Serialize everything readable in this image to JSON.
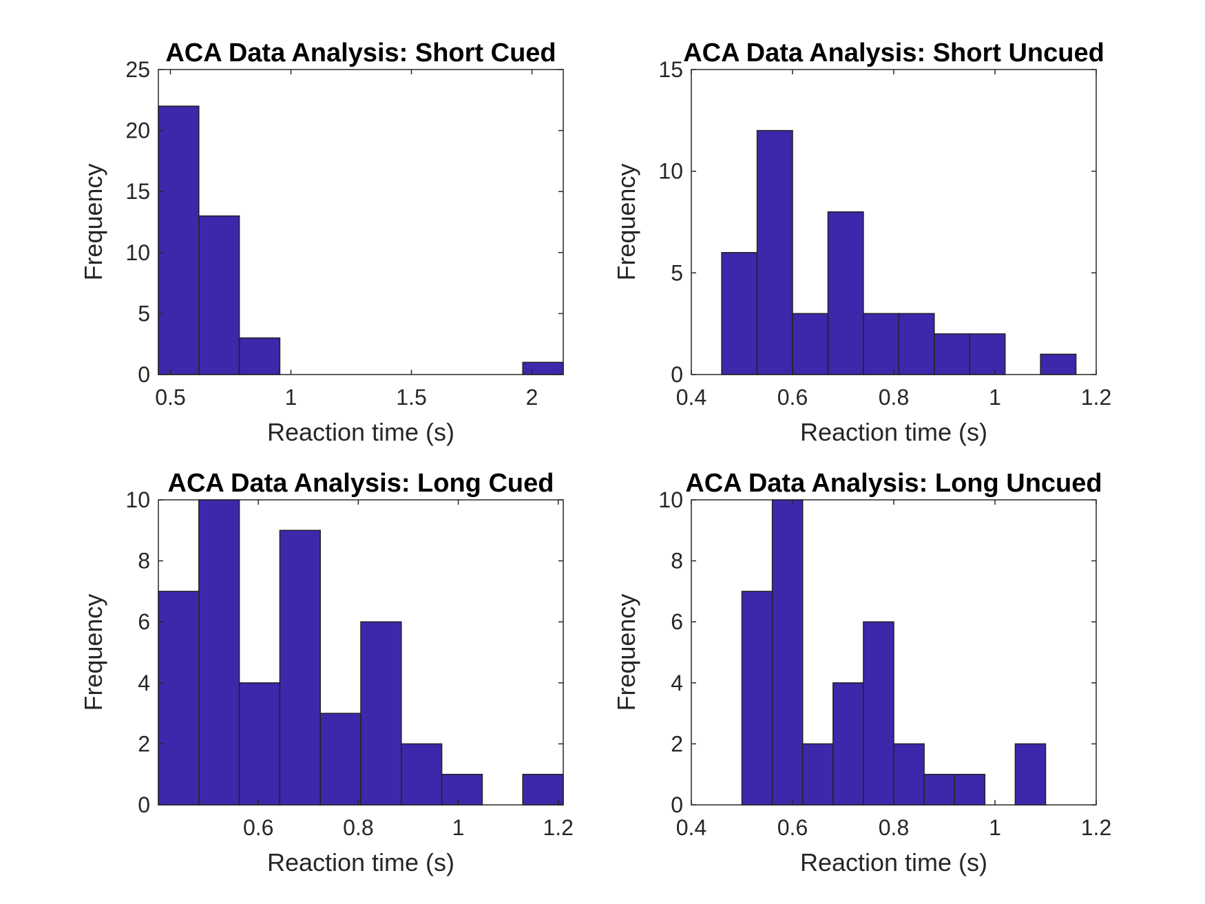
{
  "colors": {
    "bar_fill": "#3c28aa",
    "bar_edge": "#222222",
    "axis": "#262626",
    "background": "#ffffff"
  },
  "chart_data": [
    {
      "type": "bar",
      "title": "ACA Data Analysis: Short Cued",
      "xlabel": "Reaction time (s)",
      "ylabel": "Frequency",
      "xlim": [
        0.45,
        2.13
      ],
      "ylim": [
        0,
        25
      ],
      "xticks": [
        0.5,
        1,
        1.5,
        2
      ],
      "xtick_labels": [
        "0.5",
        "1",
        "1.5",
        "2"
      ],
      "yticks": [
        0,
        5,
        10,
        15,
        20,
        25
      ],
      "ytick_labels": [
        "0",
        "5",
        "10",
        "15",
        "20",
        "25"
      ],
      "bin_edges": [
        0.45,
        0.618,
        0.786,
        0.954,
        1.122,
        1.29,
        1.458,
        1.626,
        1.794,
        1.962,
        2.13
      ],
      "values": [
        22,
        13,
        3,
        0,
        0,
        0,
        0,
        0,
        0,
        1
      ]
    },
    {
      "type": "bar",
      "title": "ACA Data Analysis: Short Uncued",
      "xlabel": "Reaction time (s)",
      "ylabel": "Frequency",
      "xlim": [
        0.4,
        1.2
      ],
      "ylim": [
        0,
        15
      ],
      "xticks": [
        0.4,
        0.6,
        0.8,
        1,
        1.2
      ],
      "xtick_labels": [
        "0.4",
        "0.6",
        "0.8",
        "1",
        "1.2"
      ],
      "yticks": [
        0,
        5,
        10,
        15
      ],
      "ytick_labels": [
        "0",
        "5",
        "10",
        "15"
      ],
      "bin_edges": [
        0.46,
        0.53,
        0.6,
        0.67,
        0.74,
        0.81,
        0.88,
        0.95,
        1.02,
        1.09,
        1.16
      ],
      "values": [
        6,
        12,
        3,
        8,
        3,
        3,
        2,
        2,
        0,
        1
      ]
    },
    {
      "type": "bar",
      "title": "ACA Data Analysis: Long Cued",
      "xlabel": "Reaction time (s)",
      "ylabel": "Frequency",
      "xlim": [
        0.4,
        1.21
      ],
      "ylim": [
        0,
        10
      ],
      "xticks": [
        0.6,
        0.8,
        1,
        1.2
      ],
      "xtick_labels": [
        "0.6",
        "0.8",
        "1",
        "1.2"
      ],
      "yticks": [
        0,
        2,
        4,
        6,
        8,
        10
      ],
      "ytick_labels": [
        "0",
        "2",
        "4",
        "6",
        "8",
        "10"
      ],
      "bin_edges": [
        0.4,
        0.481,
        0.562,
        0.643,
        0.724,
        0.805,
        0.886,
        0.967,
        1.048,
        1.129,
        1.21
      ],
      "values": [
        7,
        10,
        4,
        9,
        3,
        6,
        2,
        1,
        0,
        1
      ]
    },
    {
      "type": "bar",
      "title": "ACA Data Analysis: Long Uncued",
      "xlabel": "Reaction time (s)",
      "ylabel": "Frequency",
      "xlim": [
        0.4,
        1.2
      ],
      "ylim": [
        0,
        10
      ],
      "xticks": [
        0.4,
        0.6,
        0.8,
        1,
        1.2
      ],
      "xtick_labels": [
        "0.4",
        "0.6",
        "0.8",
        "1",
        "1.2"
      ],
      "yticks": [
        0,
        2,
        4,
        6,
        8,
        10
      ],
      "ytick_labels": [
        "0",
        "2",
        "4",
        "6",
        "8",
        "10"
      ],
      "bin_edges": [
        0.5,
        0.56,
        0.62,
        0.68,
        0.74,
        0.8,
        0.86,
        0.92,
        0.98,
        1.04,
        1.1
      ],
      "values": [
        7,
        10,
        2,
        4,
        6,
        2,
        1,
        1,
        0,
        2
      ]
    }
  ]
}
